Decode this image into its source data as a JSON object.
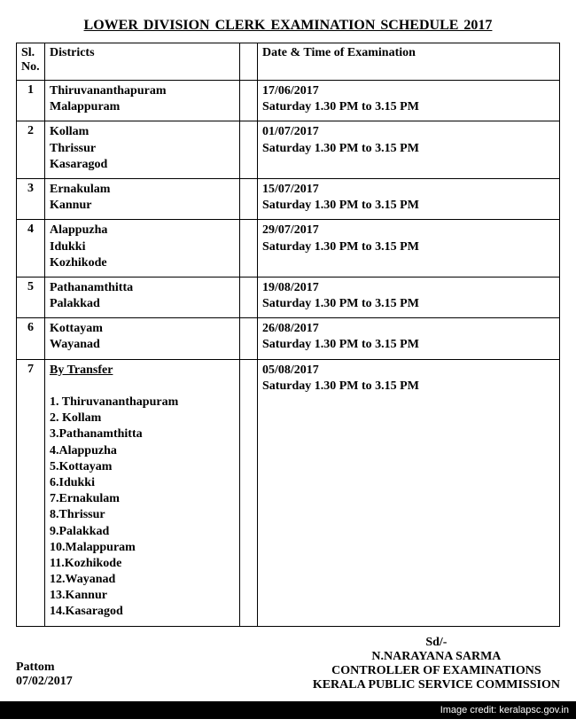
{
  "title": "LOWER  DIVISION CLERK  EXAMINATION SCHEDULE  2017",
  "columns": {
    "slno": "Sl. No.",
    "districts": "Districts",
    "datetime": "Date & Time of Examination"
  },
  "rows": [
    {
      "slno": "1",
      "districts": [
        "Thiruvananthapuram",
        "Malappuram"
      ],
      "date": "17/06/2017",
      "time": "Saturday 1.30 PM to 3.15 PM"
    },
    {
      "slno": "2",
      "districts": [
        "Kollam",
        "Thrissur",
        "Kasaragod"
      ],
      "date": "01/07/2017",
      "time": "Saturday 1.30 PM to 3.15 PM"
    },
    {
      "slno": "3",
      "districts": [
        "Ernakulam",
        "Kannur"
      ],
      "date": "15/07/2017",
      "time": "Saturday 1.30 PM to 3.15 PM"
    },
    {
      "slno": "4",
      "districts": [
        "Alappuzha",
        "Idukki",
        "Kozhikode"
      ],
      "date": "29/07/2017",
      "time": "Saturday 1.30 PM to 3.15 PM"
    },
    {
      "slno": "5",
      "districts": [
        "Pathanamthitta",
        "Palakkad"
      ],
      "date": "19/08/2017",
      "time": "Saturday 1.30 PM to 3.15 PM"
    },
    {
      "slno": "6",
      "districts": [
        "Kottayam",
        "Wayanad"
      ],
      "date": "26/08/2017",
      "time": "Saturday 1.30 PM to 3.15 PM"
    }
  ],
  "transfer_row": {
    "slno": "7",
    "heading": "By Transfer",
    "items": [
      "1. Thiruvananthapuram",
      "2. Kollam",
      "3.Pathanamthitta",
      "4.Alappuzha",
      "5.Kottayam",
      "6.Idukki",
      "7.Ernakulam",
      "8.Thrissur",
      "9.Palakkad",
      "10.Malappuram",
      "11.Kozhikode",
      "12.Wayanad",
      "13.Kannur",
      "14.Kasaragod"
    ],
    "date": "05/08/2017",
    "time": "Saturday 1.30 PM to 3.15 PM"
  },
  "footer": {
    "left_place": "Pattom",
    "left_date": "07/02/2017",
    "sd": "Sd/-",
    "name": "N.NARAYANA SARMA",
    "designation": "CONTROLLER OF EXAMINATIONS",
    "org": "KERALA PUBLIC SERVICE COMMISSION"
  },
  "image_credit": "Image credit: keralapsc.gov.in"
}
